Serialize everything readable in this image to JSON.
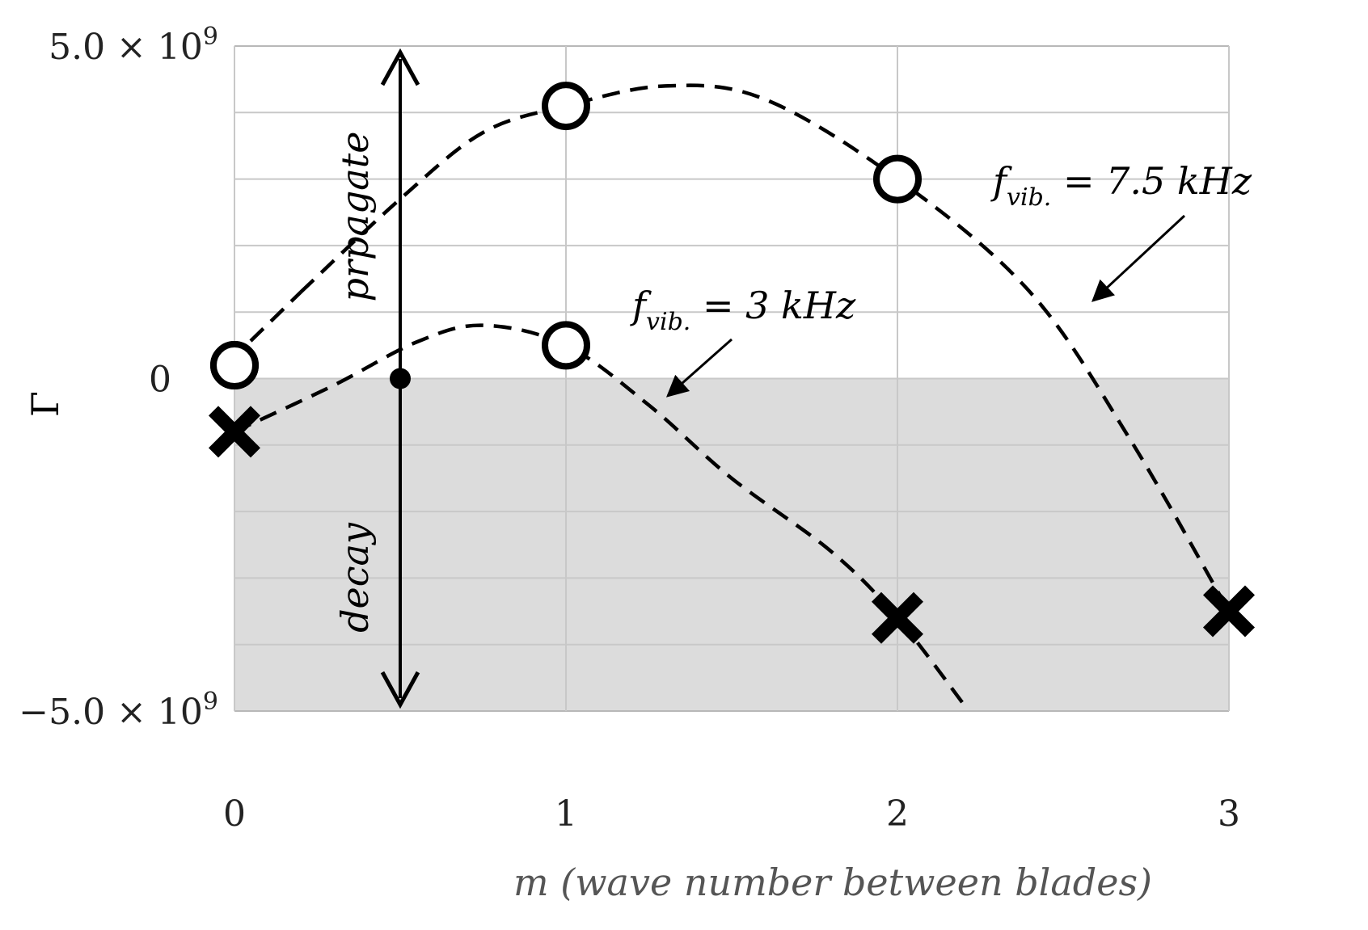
{
  "chart_data": {
    "type": "scatter",
    "xlabel": "m (wave number between blades)",
    "ylabel": "Γ",
    "xlim": [
      0,
      3
    ],
    "ylim": [
      -5000000000.0,
      5000000000.0
    ],
    "x_ticks": [
      "0",
      "1",
      "2",
      "3"
    ],
    "y_ticks": [
      {
        "value": 5000000000.0,
        "label": "5.0 × 10",
        "exp": "9"
      },
      {
        "value": 0,
        "label": "0",
        "exp": ""
      },
      {
        "value": -5000000000.0,
        "label": "−5.0 × 10",
        "exp": "9"
      }
    ],
    "grid": true,
    "decay_region": [
      -5000000000.0,
      0
    ],
    "boundary_x": 0.5,
    "region_labels": {
      "propagate": "prpagate",
      "decay": "decay"
    },
    "series": [
      {
        "name": "f_vib. = 7.5 kHz",
        "label_main": "f",
        "label_sub": "vib.",
        "label_rest": " = 7.5 kHz",
        "points": [
          {
            "x": 0,
            "y": 200000000.0,
            "marker": "circle"
          },
          {
            "x": 1,
            "y": 4100000000.0,
            "marker": "circle"
          },
          {
            "x": 2,
            "y": 3000000000.0,
            "marker": "circle"
          },
          {
            "x": 3,
            "y": -3500000000.0,
            "marker": "cross"
          }
        ],
        "curve": [
          [
            0.2,
            1300000000.0
          ],
          [
            0.5,
            2700000000.0
          ],
          [
            0.75,
            3700000000.0
          ],
          [
            1,
            4100000000.0
          ],
          [
            1.3,
            4400000000.0
          ],
          [
            1.6,
            4200000000.0
          ],
          [
            2,
            3000000000.0
          ],
          [
            2.4,
            1300000000.0
          ],
          [
            2.7,
            -900000000.0
          ],
          [
            3,
            -3500000000.0
          ]
        ]
      },
      {
        "name": "f_vib. = 3 kHz",
        "label_main": "f",
        "label_sub": "vib.",
        "label_rest": " = 3 kHz",
        "points": [
          {
            "x": 0,
            "y": 200000000.0,
            "marker": "circle"
          },
          {
            "x": 0,
            "y": -800000000.0,
            "marker": "cross"
          },
          {
            "x": 1,
            "y": 500000000.0,
            "marker": "circle"
          },
          {
            "x": 2,
            "y": -3600000000.0,
            "marker": "cross"
          }
        ],
        "curve": [
          [
            0,
            -800000000.0
          ],
          [
            0.3,
            -100000000.0
          ],
          [
            0.55,
            550000000.0
          ],
          [
            0.75,
            800000000.0
          ],
          [
            1,
            500000000.0
          ],
          [
            1.25,
            -400000000.0
          ],
          [
            1.5,
            -1500000000.0
          ],
          [
            1.8,
            -2600000000.0
          ],
          [
            2,
            -3600000000.0
          ],
          [
            2.2,
            -4900000000.0
          ]
        ]
      }
    ]
  }
}
